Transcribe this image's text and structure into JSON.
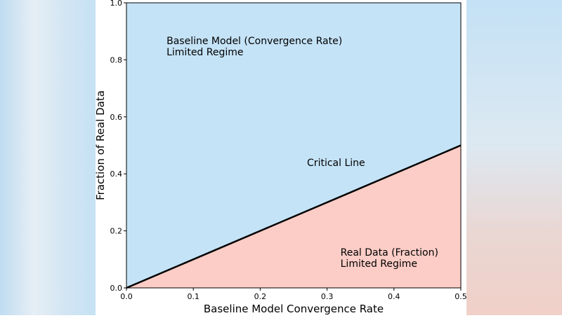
{
  "chart_data": {
    "type": "area",
    "title": "",
    "xlabel": "Baseline Model Convergence Rate",
    "ylabel": "Fraction of Real Data",
    "xlim": [
      0.0,
      0.5
    ],
    "ylim": [
      0.0,
      1.0
    ],
    "xticks": [
      0.0,
      0.1,
      0.2,
      0.3,
      0.4,
      0.5
    ],
    "yticks": [
      0.0,
      0.2,
      0.4,
      0.6,
      0.8,
      1.0
    ],
    "xtick_labels": [
      "0.0",
      "0.1",
      "0.2",
      "0.3",
      "0.4",
      "0.5"
    ],
    "ytick_labels": [
      "0.0",
      "0.2",
      "0.4",
      "0.6",
      "0.8",
      "1.0"
    ],
    "grid": false,
    "series": [
      {
        "name": "Critical Line",
        "x": [
          0.0,
          0.5
        ],
        "y": [
          0.0,
          0.5
        ],
        "color": "#000000"
      }
    ],
    "regions": [
      {
        "name": "Baseline Model (Convergence Rate) Limited Regime",
        "position": "above critical line",
        "color": "#c5e3f7"
      },
      {
        "name": "Real Data (Fraction) Limited Regime",
        "position": "below critical line",
        "color": "#fbcdc6"
      }
    ],
    "annotations": [
      {
        "id": "upper",
        "lines": [
          "Baseline Model (Convergence Rate)",
          "Limited Regime"
        ],
        "x": 0.06,
        "y": 0.855
      },
      {
        "id": "critical",
        "lines": [
          "Critical Line"
        ],
        "x": 0.27,
        "y": 0.428
      },
      {
        "id": "lower",
        "lines": [
          "Real Data (Fraction)",
          "Limited Regime"
        ],
        "x": 0.32,
        "y": 0.113
      }
    ]
  }
}
